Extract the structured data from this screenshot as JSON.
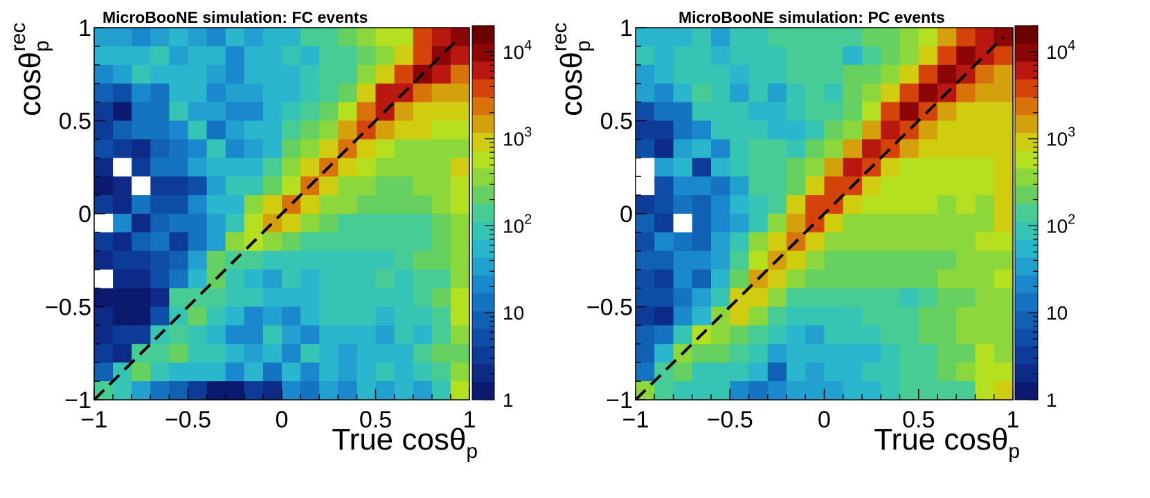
{
  "chart_data": [
    {
      "type": "heatmap",
      "title": "MicroBooNE simulation: FC events",
      "xlabel": "True cosθ",
      "xlabel_sub": "p",
      "ylabel": "cosθ",
      "ylabel_sup": "rec",
      "ylabel_sub": "p",
      "xlim": [
        -1,
        1
      ],
      "ylim": [
        -1,
        1
      ],
      "bins": 20,
      "xticks": [
        "−1",
        "−0.5",
        "0",
        "0.5",
        "1"
      ],
      "yticks": [
        "−1",
        "−0.5",
        "0",
        "0.5",
        "1"
      ],
      "zscale": "log",
      "zlim": [
        1,
        20000
      ],
      "colorbar_ticks": [
        {
          "value": 1,
          "label": "1"
        },
        {
          "value": 10,
          "label": "10"
        },
        {
          "value": 100,
          "base": "10",
          "exp": "2"
        },
        {
          "value": 1000,
          "base": "10",
          "exp": "3"
        },
        {
          "value": 10000,
          "base": "10",
          "exp": "4"
        }
      ],
      "diagonal": "dashed y = x",
      "z_levels_note": "z given as colour level 0-19 (log scale 1 to 2e4, 0 = lowest), rows from top (rec cos=+1) to bottom (rec cos=-1), -1 = empty bin",
      "z_levels": [
        [
          7,
          7,
          6,
          7,
          8,
          7,
          6,
          8,
          7,
          8,
          8,
          10,
          10,
          11,
          12,
          13,
          13,
          17,
          18,
          19
        ],
        [
          8,
          8,
          8,
          9,
          7,
          8,
          8,
          6,
          8,
          8,
          9,
          8,
          10,
          10,
          11,
          12,
          14,
          17,
          19,
          18
        ],
        [
          6,
          7,
          9,
          8,
          8,
          8,
          7,
          6,
          8,
          8,
          8,
          9,
          10,
          10,
          12,
          14,
          17,
          19,
          18,
          16
        ],
        [
          4,
          3,
          6,
          5,
          8,
          8,
          6,
          7,
          7,
          8,
          8,
          9,
          10,
          11,
          14,
          18,
          18,
          16,
          15,
          15
        ],
        [
          2,
          0,
          5,
          5,
          9,
          7,
          7,
          6,
          6,
          8,
          9,
          10,
          11,
          13,
          16,
          18,
          15,
          14,
          14,
          14
        ],
        [
          2,
          4,
          5,
          5,
          6,
          9,
          5,
          7,
          8,
          8,
          10,
          11,
          12,
          15,
          17,
          15,
          14,
          14,
          13,
          13
        ],
        [
          3,
          2,
          1,
          4,
          5,
          6,
          9,
          6,
          7,
          8,
          11,
          12,
          14,
          16,
          14,
          13,
          12,
          12,
          12,
          12
        ],
        [
          1,
          -1,
          2,
          5,
          5,
          7,
          8,
          8,
          8,
          10,
          12,
          14,
          16,
          14,
          13,
          12,
          12,
          12,
          12,
          14
        ],
        [
          0,
          1,
          -1,
          2,
          2,
          3,
          7,
          9,
          9,
          11,
          13,
          16,
          14,
          12,
          12,
          11,
          11,
          12,
          12,
          13
        ],
        [
          2,
          1,
          5,
          3,
          3,
          6,
          8,
          8,
          12,
          14,
          16,
          14,
          12,
          12,
          11,
          11,
          11,
          11,
          12,
          13
        ],
        [
          -1,
          6,
          1,
          4,
          5,
          5,
          7,
          9,
          13,
          15,
          14,
          12,
          11,
          10,
          10,
          10,
          10,
          10,
          11,
          12
        ],
        [
          2,
          1,
          4,
          5,
          2,
          5,
          7,
          12,
          13,
          12,
          11,
          10,
          10,
          10,
          10,
          10,
          10,
          10,
          11,
          12
        ],
        [
          1,
          2,
          2,
          3,
          4,
          7,
          11,
          10,
          10,
          9,
          9,
          9,
          9,
          9,
          9,
          9,
          10,
          11,
          11,
          12
        ],
        [
          -1,
          1,
          1,
          3,
          5,
          8,
          11,
          9,
          8,
          7,
          9,
          8,
          9,
          9,
          9,
          10,
          9,
          10,
          10,
          12
        ],
        [
          0,
          0,
          0,
          1,
          10,
          10,
          10,
          9,
          9,
          8,
          8,
          8,
          9,
          9,
          9,
          9,
          9,
          10,
          11,
          13
        ],
        [
          1,
          0,
          0,
          3,
          9,
          11,
          9,
          8,
          6,
          7,
          6,
          8,
          9,
          9,
          9,
          8,
          9,
          9,
          10,
          13
        ],
        [
          1,
          2,
          2,
          9,
          10,
          9,
          8,
          6,
          6,
          9,
          7,
          6,
          8,
          8,
          8,
          7,
          9,
          8,
          10,
          12
        ],
        [
          2,
          1,
          10,
          10,
          11,
          9,
          9,
          8,
          7,
          8,
          6,
          9,
          8,
          7,
          8,
          8,
          8,
          10,
          11,
          11
        ],
        [
          4,
          9,
          11,
          9,
          8,
          8,
          8,
          6,
          8,
          5,
          8,
          6,
          8,
          7,
          8,
          9,
          8,
          9,
          10,
          12
        ],
        [
          10,
          9,
          7,
          5,
          4,
          2,
          0,
          0,
          2,
          1,
          6,
          5,
          7,
          6,
          8,
          7,
          8,
          7,
          9,
          13
        ]
      ]
    },
    {
      "type": "heatmap",
      "title": "MicroBooNE simulation: PC events",
      "xlabel": "True cosθ",
      "xlabel_sub": "p",
      "ylabel": "cosθ",
      "ylabel_sup": "rec",
      "ylabel_sub": "p",
      "xlim": [
        -1,
        1
      ],
      "ylim": [
        -1,
        1
      ],
      "bins": 20,
      "xticks": [
        "−1",
        "−0.5",
        "0",
        "0.5",
        "1"
      ],
      "yticks": [
        "−1",
        "−0.5",
        "0",
        "0.5",
        "1"
      ],
      "zscale": "log",
      "zlim": [
        1,
        20000
      ],
      "colorbar_ticks": [
        {
          "value": 1,
          "label": "1"
        },
        {
          "value": 10,
          "label": "10"
        },
        {
          "value": 100,
          "base": "10",
          "exp": "2"
        },
        {
          "value": 1000,
          "base": "10",
          "exp": "3"
        },
        {
          "value": 10000,
          "base": "10",
          "exp": "4"
        }
      ],
      "diagonal": "dashed y = x",
      "z_levels_note": "z given as colour level 0-19 (log scale 1 to 2e4, 0 = lowest), rows from top (rec cos=+1) to bottom (rec cos=-1), -1 = empty bin",
      "z_levels": [
        [
          8,
          8,
          8,
          9,
          7,
          9,
          9,
          10,
          10,
          10,
          10,
          10,
          11,
          11,
          12,
          13,
          15,
          17,
          18,
          19
        ],
        [
          9,
          8,
          9,
          9,
          8,
          9,
          9,
          9,
          10,
          10,
          10,
          8,
          10,
          11,
          12,
          14,
          17,
          19,
          18,
          17
        ],
        [
          7,
          8,
          9,
          9,
          9,
          8,
          9,
          9,
          10,
          10,
          10,
          11,
          11,
          12,
          14,
          17,
          19,
          18,
          16,
          15
        ],
        [
          7,
          6,
          8,
          10,
          9,
          7,
          9,
          7,
          9,
          10,
          9,
          11,
          12,
          14,
          17,
          19,
          18,
          16,
          15,
          15
        ],
        [
          3,
          5,
          5,
          9,
          9,
          9,
          8,
          8,
          9,
          10,
          10,
          11,
          13,
          17,
          19,
          17,
          15,
          14,
          14,
          14
        ],
        [
          2,
          2,
          5,
          6,
          9,
          9,
          9,
          8,
          8,
          9,
          11,
          12,
          15,
          18,
          17,
          15,
          14,
          14,
          14,
          14
        ],
        [
          3,
          1,
          7,
          8,
          6,
          9,
          10,
          10,
          9,
          11,
          12,
          15,
          18,
          17,
          15,
          14,
          14,
          14,
          14,
          14
        ],
        [
          -1,
          7,
          8,
          2,
          8,
          9,
          10,
          10,
          11,
          12,
          15,
          18,
          17,
          14,
          13,
          13,
          13,
          13,
          13,
          14
        ],
        [
          -1,
          3,
          6,
          6,
          5,
          7,
          10,
          10,
          11,
          14,
          17,
          17,
          14,
          13,
          13,
          13,
          13,
          13,
          13,
          14
        ],
        [
          2,
          3,
          5,
          4,
          6,
          8,
          9,
          10,
          14,
          17,
          17,
          14,
          13,
          13,
          13,
          13,
          12,
          13,
          12,
          14
        ],
        [
          4,
          2,
          -1,
          4,
          6,
          7,
          9,
          12,
          15,
          17,
          14,
          12,
          12,
          12,
          12,
          12,
          12,
          12,
          12,
          14
        ],
        [
          3,
          6,
          5,
          4,
          7,
          9,
          12,
          14,
          16,
          14,
          12,
          12,
          12,
          12,
          12,
          12,
          12,
          12,
          13,
          13
        ],
        [
          4,
          4,
          6,
          6,
          7,
          10,
          13,
          15,
          14,
          12,
          11,
          11,
          11,
          11,
          11,
          11,
          11,
          12,
          12,
          12
        ],
        [
          3,
          2,
          6,
          4,
          8,
          11,
          15,
          14,
          12,
          11,
          11,
          11,
          11,
          11,
          11,
          11,
          12,
          12,
          12,
          13
        ],
        [
          3,
          3,
          5,
          7,
          9,
          14,
          14,
          12,
          10,
          10,
          10,
          10,
          10,
          10,
          9,
          10,
          11,
          11,
          12,
          12
        ],
        [
          2,
          1,
          6,
          8,
          12,
          14,
          12,
          10,
          9,
          9,
          9,
          9,
          10,
          10,
          10,
          11,
          11,
          12,
          12,
          12
        ],
        [
          4,
          5,
          9,
          13,
          12,
          11,
          10,
          9,
          8,
          7,
          9,
          9,
          9,
          10,
          10,
          11,
          11,
          12,
          12,
          12
        ],
        [
          4,
          8,
          12,
          11,
          11,
          10,
          9,
          7,
          8,
          8,
          8,
          8,
          8,
          9,
          10,
          10,
          11,
          11,
          13,
          12
        ],
        [
          5,
          10,
          11,
          9,
          9,
          9,
          8,
          4,
          8,
          7,
          8,
          8,
          9,
          9,
          10,
          10,
          11,
          12,
          13,
          13
        ],
        [
          12,
          10,
          9,
          9,
          9,
          6,
          5,
          6,
          7,
          7,
          7,
          8,
          8,
          9,
          10,
          10,
          10,
          10,
          13,
          14
        ]
      ]
    }
  ]
}
